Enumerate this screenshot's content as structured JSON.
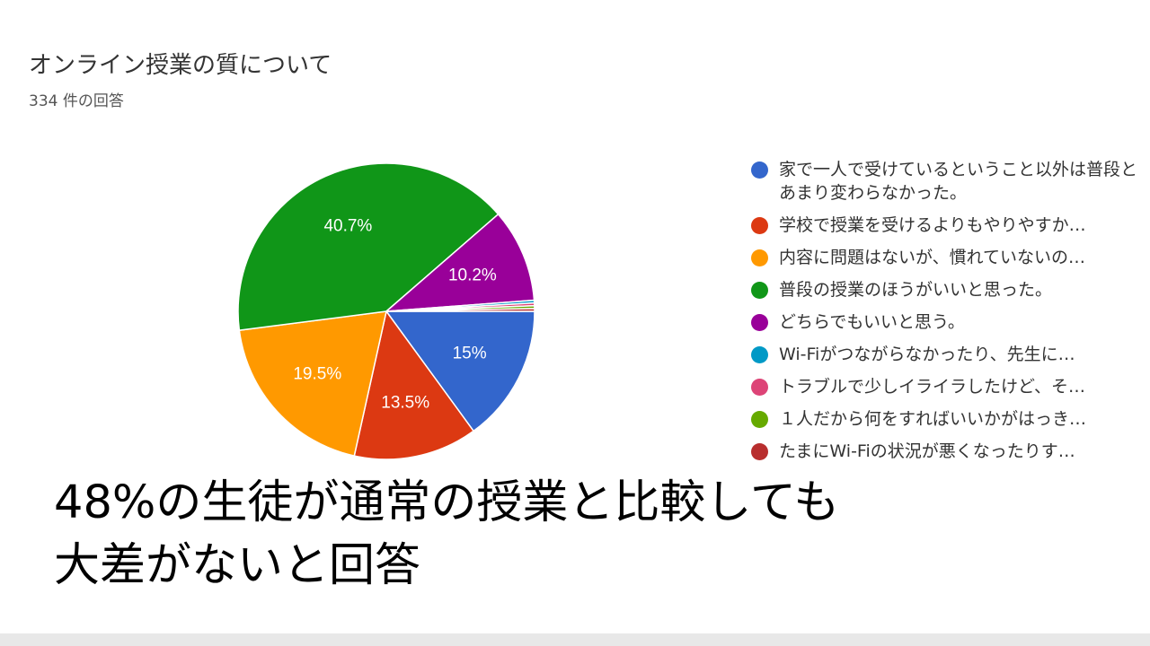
{
  "chart_data": {
    "type": "pie",
    "title": "オンライン授業の質について",
    "subtitle": "334 件の回答",
    "legend_position": "right",
    "slices": [
      {
        "label": "家で一人で受けているということ以外は普段とあまり変わらなかった。",
        "value": 15,
        "value_label": "15%",
        "color": "#3366cc"
      },
      {
        "label": "学校で授業を受けるよりもやりやすか…",
        "value": 13.5,
        "value_label": "13.5%",
        "color": "#dc3912"
      },
      {
        "label": "内容に問題はないが、慣れていないの…",
        "value": 19.5,
        "value_label": "19.5%",
        "color": "#ff9900"
      },
      {
        "label": "普段の授業のほうがいいと思った。",
        "value": 40.7,
        "value_label": "40.7%",
        "color": "#109618"
      },
      {
        "label": "どちらでもいいと思う。",
        "value": 10.2,
        "value_label": "10.2%",
        "color": "#990099"
      },
      {
        "label": "Wi-Fiがつながらなかったり、先生に…",
        "value": 0.3,
        "value_label": "",
        "color": "#0099c6"
      },
      {
        "label": "トラブルで少しイライラしたけど、そ…",
        "value": 0.3,
        "value_label": "",
        "color": "#dd4477"
      },
      {
        "label": "１人だから何をすればいいかがはっき…",
        "value": 0.3,
        "value_label": "",
        "color": "#66aa00"
      },
      {
        "label": "たまにWi-Fiの状況が悪くなったりす…",
        "value": 0.3,
        "value_label": "",
        "color": "#b82e2e"
      }
    ]
  },
  "headline": {
    "line1": "48%の生徒が通常の授業と比較しても",
    "line2": "大差がないと回答"
  }
}
